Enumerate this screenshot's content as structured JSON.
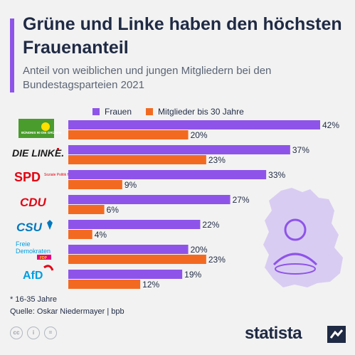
{
  "title": "Grüne und Linke haben den höchsten Frauenanteil",
  "subtitle": "Anteil von weiblichen und jungen Mitgliedern bei den Bundestagsparteien 2021",
  "legend": {
    "frauen": "Frauen",
    "jung": "Mitglieder bis 30 Jahre"
  },
  "colors": {
    "frauen": "#8e54e9",
    "jung": "#f26a21",
    "accent": "#8e54e9",
    "map": "#d9ccf2"
  },
  "chart_data": {
    "type": "bar",
    "orientation": "horizontal",
    "categories": [
      "Bündnis 90 / Die Grünen",
      "Die Linke",
      "SPD",
      "CDU",
      "CSU",
      "FDP",
      "AfD"
    ],
    "series": [
      {
        "name": "Frauen",
        "values": [
          42,
          37,
          33,
          27,
          22,
          20,
          19
        ]
      },
      {
        "name": "Mitglieder bis 30 Jahre",
        "values": [
          20,
          23,
          9,
          6,
          4,
          23,
          12
        ]
      }
    ],
    "value_suffix": "%",
    "xlim": [
      0,
      42
    ],
    "legend_position": "top"
  },
  "logos": {
    "gruene": "BÜNDNIS 90 DIE GRÜNEN",
    "linke": "DIE LINKE.",
    "spd": "SPD",
    "spd_sub": "Soziale Politik für Dich",
    "cdu": "CDU",
    "csu": "CSU",
    "fdp_1": "Freie",
    "fdp_2": "Demokraten",
    "fdp_3": "FDP",
    "afd": "AfD"
  },
  "footnote": {
    "note": "* 16-35 Jahre",
    "source": "Quelle: Oskar Niedermayer | bpb"
  },
  "cc_icons": [
    "cc-icon",
    "person-icon",
    "equals-icon"
  ],
  "brand": "statista"
}
